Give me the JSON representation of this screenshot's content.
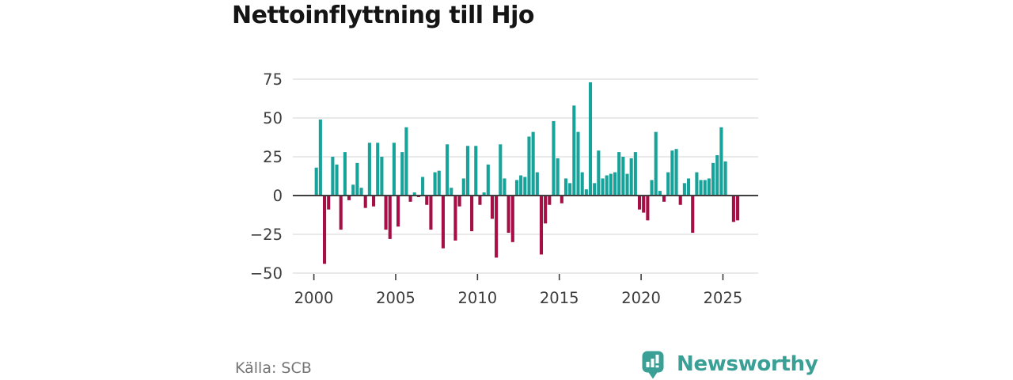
{
  "title": "Nettoinflyttning till Hjo",
  "source": "Källa: SCB",
  "branding": {
    "name": "Newsworthy",
    "color": "#3aa096",
    "logo_icon": "bar-chart-pin-icon"
  },
  "colors": {
    "positive": "#17a29a",
    "negative": "#a50f45",
    "grid": "#dcdcdc",
    "zero_line": "#3f3f3f",
    "axis_text": "#3d3d3d",
    "title_text": "#151515",
    "source_text": "#747474",
    "background": "#ffffff"
  },
  "chart_data": {
    "type": "bar",
    "title": "Nettoinflyttning till Hjo",
    "frequency": "quarterly",
    "start": "2000-Q1",
    "x_tick_labels": [
      "2000",
      "2005",
      "2010",
      "2015",
      "2020",
      "2025"
    ],
    "y_ticks": [
      75,
      50,
      25,
      0,
      -25,
      -50
    ],
    "ylim": [
      -50,
      75
    ],
    "grid": true,
    "series": [
      {
        "year": 2000,
        "values": [
          18,
          49,
          -44,
          -9
        ]
      },
      {
        "year": 2001,
        "values": [
          25,
          20,
          -22,
          28
        ]
      },
      {
        "year": 2002,
        "values": [
          -3,
          7,
          21,
          5
        ]
      },
      {
        "year": 2003,
        "values": [
          -8,
          34,
          -7,
          34
        ]
      },
      {
        "year": 2004,
        "values": [
          25,
          -22,
          -28,
          34
        ]
      },
      {
        "year": 2005,
        "values": [
          -20,
          28,
          44,
          -4
        ]
      },
      {
        "year": 2006,
        "values": [
          2,
          -1,
          12,
          -6
        ]
      },
      {
        "year": 2007,
        "values": [
          -22,
          15,
          16,
          -34
        ]
      },
      {
        "year": 2008,
        "values": [
          33,
          5,
          -29,
          -7
        ]
      },
      {
        "year": 2009,
        "values": [
          11,
          32,
          -23,
          32
        ]
      },
      {
        "year": 2010,
        "values": [
          -6,
          2,
          20,
          -15
        ]
      },
      {
        "year": 2011,
        "values": [
          -40,
          33,
          11,
          -24
        ]
      },
      {
        "year": 2012,
        "values": [
          -30,
          10,
          13,
          12
        ]
      },
      {
        "year": 2013,
        "values": [
          38,
          41,
          15,
          -38
        ]
      },
      {
        "year": 2014,
        "values": [
          -18,
          -6,
          48,
          24
        ]
      },
      {
        "year": 2015,
        "values": [
          -5,
          11,
          8,
          58
        ]
      },
      {
        "year": 2016,
        "values": [
          41,
          15,
          4,
          73
        ]
      },
      {
        "year": 2017,
        "values": [
          8,
          29,
          11,
          13
        ]
      },
      {
        "year": 2018,
        "values": [
          14,
          15,
          28,
          25
        ]
      },
      {
        "year": 2019,
        "values": [
          14,
          24,
          28,
          -9
        ]
      },
      {
        "year": 2020,
        "values": [
          -11,
          -16,
          10,
          41
        ]
      },
      {
        "year": 2021,
        "values": [
          3,
          -4,
          15,
          29
        ]
      },
      {
        "year": 2022,
        "values": [
          30,
          -6,
          8,
          11
        ]
      },
      {
        "year": 2023,
        "values": [
          -24,
          15,
          10,
          10
        ]
      },
      {
        "year": 2024,
        "values": [
          11,
          21,
          26,
          44
        ]
      },
      {
        "year": 2025,
        "values": [
          22,
          0,
          -17,
          -16
        ]
      }
    ]
  }
}
